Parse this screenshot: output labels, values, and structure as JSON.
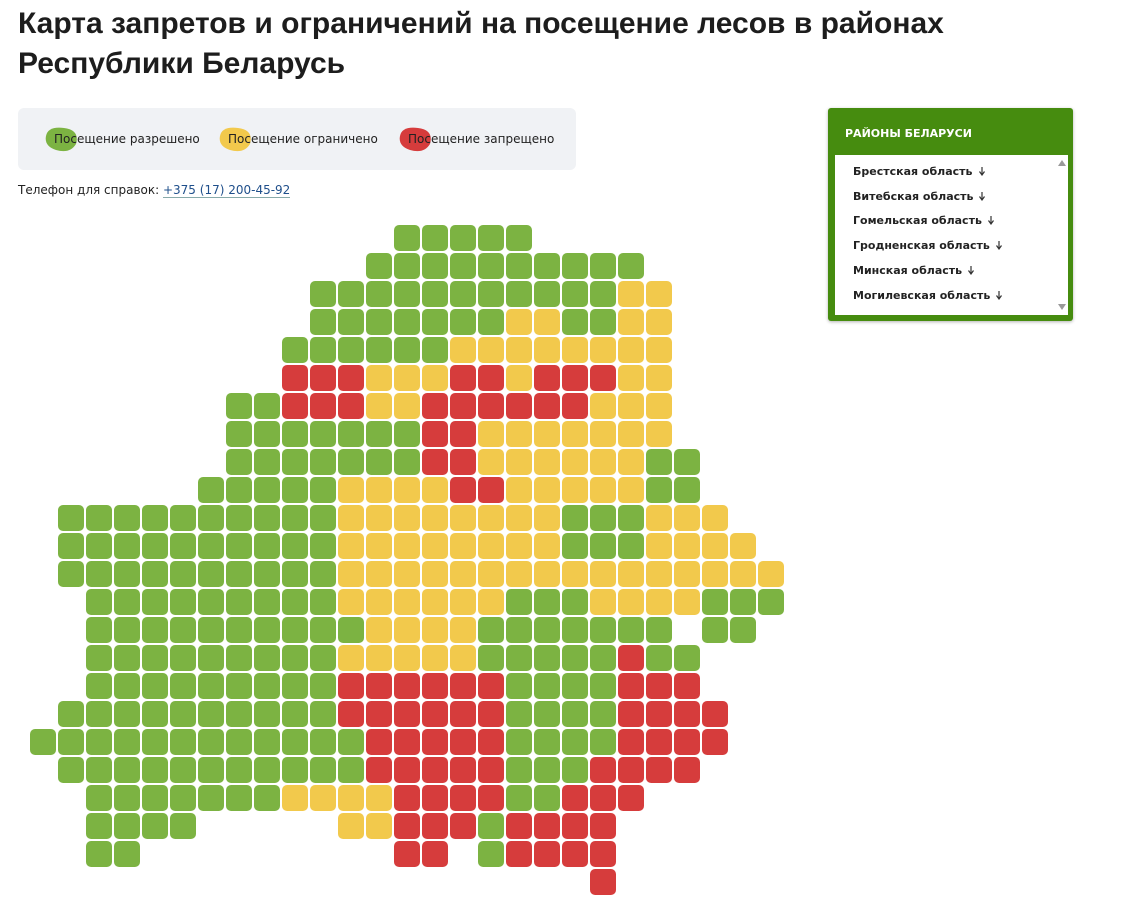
{
  "header": {
    "title": "Карта запретов и ограничений на посещение лесов в районах Республики Беларусь"
  },
  "legend": {
    "items": [
      "Посещение разрешено",
      "Посещение ограничено",
      "Посещение запрещено"
    ]
  },
  "phone": {
    "label": "Телефон для справок:",
    "number": "+375 (17) 200-45-92"
  },
  "panel": {
    "title": "РАЙОНЫ БЕЛАРУСИ",
    "regions": [
      "Брестская область",
      "Витебская область",
      "Гомельская область",
      "Гродненская область",
      "Минская область",
      "Могилевская область"
    ]
  }
}
